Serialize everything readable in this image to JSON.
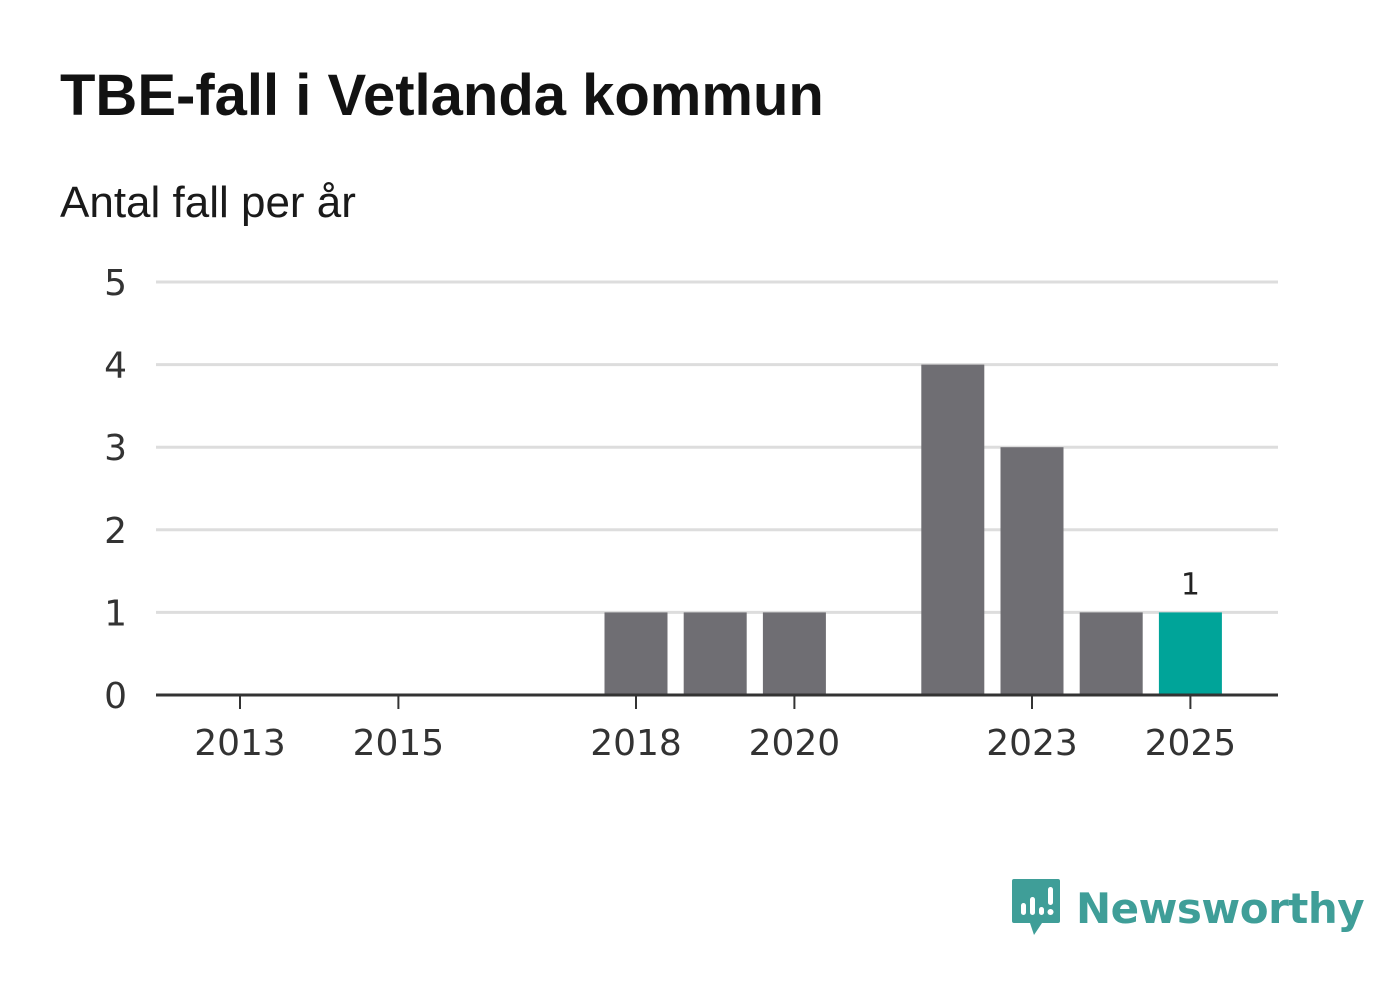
{
  "header": {
    "title": "TBE-fall i Vetlanda kommun",
    "subtitle": "Antal fall per år"
  },
  "brand": {
    "name": "Newsworthy",
    "icon": "newsworthy-logo-icon",
    "color": "#3f9e98"
  },
  "chart_data": {
    "type": "bar",
    "title": "TBE-fall i Vetlanda kommun",
    "subtitle": "Antal fall per år",
    "xlabel": "",
    "ylabel": "",
    "categories": [
      "2013",
      "2014",
      "2015",
      "2016",
      "2017",
      "2018",
      "2019",
      "2020",
      "2021",
      "2022",
      "2023",
      "2024",
      "2025"
    ],
    "values": [
      0,
      0,
      0,
      0,
      0,
      1,
      1,
      1,
      0,
      4,
      3,
      1,
      1
    ],
    "x_tick_labels": [
      "2013",
      "2015",
      "2018",
      "2020",
      "2023",
      "2025"
    ],
    "y_ticks": [
      "0",
      "1",
      "2",
      "3",
      "4",
      "5"
    ],
    "ylim": [
      0,
      5
    ],
    "grid": true,
    "colors": {
      "default": "#6f6e73",
      "highlight": "#00a499",
      "grid": "#dddddd",
      "axis": "#333333"
    },
    "highlight_category": "2025",
    "data_labels": [
      {
        "category": "2025",
        "text": "1"
      }
    ]
  }
}
